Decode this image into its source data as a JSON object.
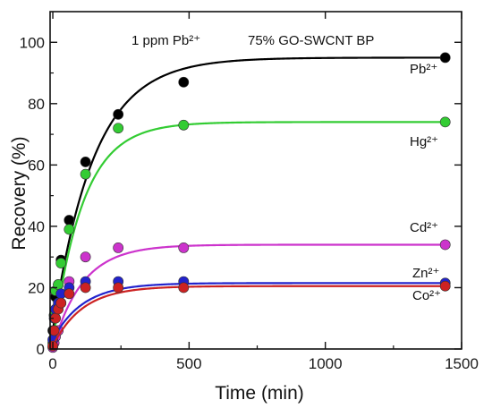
{
  "chart_data": {
    "type": "scatter",
    "annotations": [
      "1 ppm Pb²⁺",
      "75% GO-SWCNT BP"
    ],
    "xlabel": "Time (min)",
    "ylabel": "Recovery (%)",
    "xlim": [
      -10,
      1500
    ],
    "ylim": [
      0,
      110
    ],
    "xticks": [
      "0",
      "500",
      "1000",
      "1500"
    ],
    "yticks": [
      "0",
      "20",
      "40",
      "60",
      "80",
      "100"
    ],
    "grid": false,
    "legend": "labels beside curves on the right",
    "series": [
      {
        "name": "Pb²⁺",
        "color": "#000000",
        "x": [
          0,
          5,
          10,
          20,
          30,
          60,
          120,
          240,
          480,
          1440
        ],
        "y": [
          6,
          11,
          17,
          21,
          29,
          42,
          61,
          76.5,
          87,
          95
        ]
      },
      {
        "name": "Hg²⁺",
        "color": "#33cc33",
        "x": [
          0,
          5,
          10,
          20,
          30,
          60,
          120,
          240,
          480,
          1440
        ],
        "y": [
          2,
          11,
          19,
          21,
          28,
          39,
          57,
          72,
          73,
          74
        ]
      },
      {
        "name": "Cd²⁺",
        "color": "#cc33cc",
        "x": [
          0,
          5,
          10,
          20,
          30,
          60,
          120,
          240,
          480,
          1440
        ],
        "y": [
          0.5,
          2,
          4,
          6,
          15,
          22,
          30,
          33,
          33,
          34
        ]
      },
      {
        "name": "Zn²⁺",
        "color": "#2222cc",
        "x": [
          0,
          5,
          10,
          20,
          30,
          60,
          120,
          240,
          480,
          1440
        ],
        "y": [
          3,
          10,
          13,
          15,
          18,
          20,
          22,
          22,
          22,
          21.5
        ]
      },
      {
        "name": "Co²⁺",
        "color": "#cc2222",
        "x": [
          0,
          5,
          10,
          20,
          30,
          60,
          120,
          240,
          480,
          1440
        ],
        "y": [
          1,
          6,
          10,
          13,
          15,
          18,
          20,
          20,
          20,
          20.5
        ]
      }
    ]
  }
}
